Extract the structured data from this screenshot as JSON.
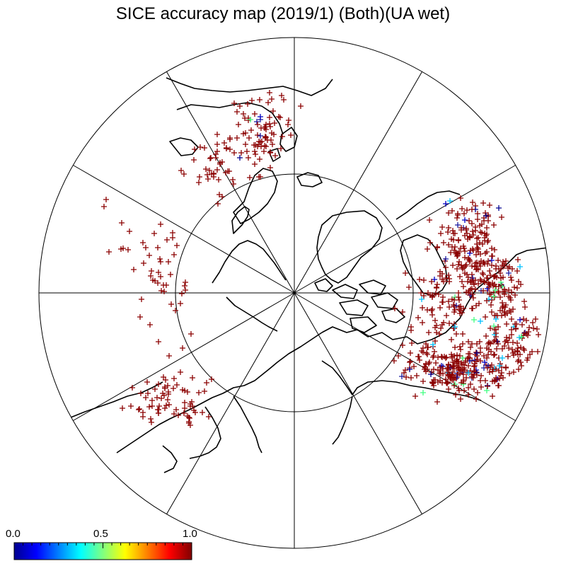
{
  "title": "SICE accuracy map (2019/1) (Both)(UA wet)",
  "colorbar": {
    "labels": [
      "0.0",
      "0.5",
      "1.0"
    ],
    "range": [
      0.0,
      1.0
    ],
    "colors": [
      "#00008f",
      "#0000ff",
      "#0080ff",
      "#00ffff",
      "#80ff80",
      "#ffff00",
      "#ff8000",
      "#ff0000",
      "#800000"
    ]
  },
  "map": {
    "projection": "north-polar-stereographic",
    "meridian_spacing_deg": 30,
    "latitude_circles_deg": [
      60,
      40
    ],
    "marker": "plus",
    "dominant_marker_color": "#8b0000"
  }
}
